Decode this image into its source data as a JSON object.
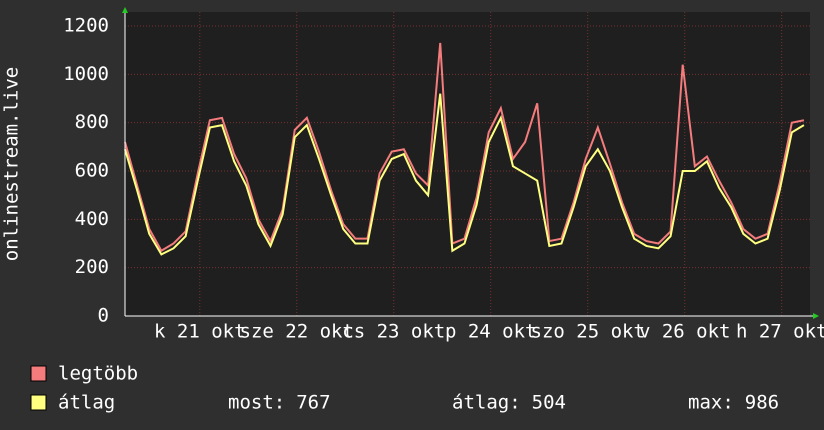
{
  "chart_data": {
    "type": "line",
    "y_label": "onlinestream.live",
    "x": [
      0,
      3,
      6,
      9,
      12,
      15,
      18,
      21,
      24,
      27,
      30,
      33,
      36,
      39,
      42,
      45,
      48,
      51,
      54,
      57,
      60,
      63,
      66,
      69,
      72,
      75,
      78,
      81,
      84,
      87,
      90,
      93,
      96,
      99,
      102,
      105,
      108,
      111,
      114,
      117,
      120,
      123,
      126,
      129,
      132,
      135,
      138,
      141,
      144,
      147,
      150,
      153,
      156,
      159,
      162,
      165,
      168
    ],
    "xlim": [
      0,
      169.5
    ],
    "xticks": [
      {
        "value": 18.5,
        "label": "k 21 okt"
      },
      {
        "value": 42.5,
        "label": "sze 22 okt"
      },
      {
        "value": 66.5,
        "label": "cs 23 okt"
      },
      {
        "value": 90.5,
        "label": "p 24 okt"
      },
      {
        "value": 114.5,
        "label": "szo 25 okt"
      },
      {
        "value": 138.5,
        "label": "v 26 okt"
      },
      {
        "value": 162.5,
        "label": "h 27 okt"
      }
    ],
    "ylim": [
      0,
      1258
    ],
    "yticks": [
      0,
      200,
      400,
      600,
      800,
      1000,
      1200
    ],
    "grid": true,
    "series": [
      {
        "name": "legtöbb",
        "color": "#f47c7c",
        "values": [
          720,
          540,
          360,
          270,
          300,
          350,
          590,
          810,
          820,
          670,
          570,
          400,
          310,
          440,
          770,
          820,
          680,
          520,
          380,
          320,
          320,
          590,
          680,
          690,
          590,
          540,
          1130,
          300,
          320,
          490,
          760,
          860,
          650,
          720,
          880,
          310,
          320,
          470,
          650,
          780,
          630,
          470,
          340,
          310,
          300,
          350,
          1040,
          620,
          660,
          560,
          470,
          360,
          320,
          340,
          550,
          800,
          810
        ]
      },
      {
        "name": "átlag",
        "color": "#ffff80",
        "values": [
          690,
          520,
          340,
          255,
          280,
          330,
          560,
          780,
          790,
          640,
          540,
          380,
          290,
          420,
          740,
          790,
          650,
          500,
          360,
          300,
          300,
          560,
          650,
          670,
          560,
          500,
          920,
          270,
          300,
          460,
          720,
          820,
          620,
          590,
          560,
          290,
          300,
          450,
          620,
          690,
          600,
          450,
          320,
          290,
          280,
          330,
          600,
          600,
          640,
          530,
          450,
          340,
          300,
          320,
          520,
          760,
          790
        ]
      }
    ],
    "stats": [
      {
        "label": "most:",
        "value": 767
      },
      {
        "label": "átlag:",
        "value": 504
      },
      {
        "label": "max:",
        "value": 986
      }
    ]
  }
}
